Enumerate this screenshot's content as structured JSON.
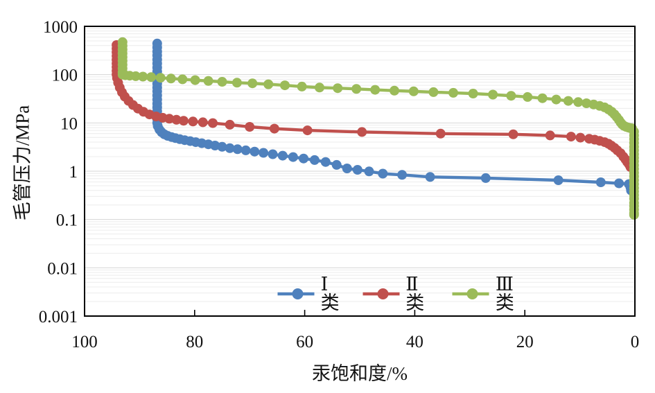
{
  "chart_data": {
    "type": "line",
    "title": "",
    "xlabel": "汞饱和度/%",
    "ylabel": "毛管压力/MPa",
    "x_axis": {
      "reversed": true,
      "min": 0,
      "max": 100,
      "ticks": [
        100,
        80,
        60,
        40,
        20,
        0
      ]
    },
    "y_axis": {
      "scale": "log",
      "min": 0.001,
      "max": 1000,
      "ticks": [
        {
          "label": "1000",
          "value": 1000
        },
        {
          "label": "100",
          "value": 100
        },
        {
          "label": "10",
          "value": 10
        },
        {
          "label": "1",
          "value": 1
        },
        {
          "label": "0.1",
          "value": 0.1
        },
        {
          "label": "0.01",
          "value": 0.01
        },
        {
          "label": "0.001",
          "value": 0.001
        }
      ]
    },
    "grid": {
      "horizontal_major": true,
      "horizontal_minor_log": true,
      "vertical": false,
      "major_color": "#d6d6d6",
      "minor_color": "#ececec",
      "border_color": "#000000"
    },
    "legend": {
      "position": "bottom-center-inside"
    },
    "series": [
      {
        "name": "Ⅰ类",
        "color": "#4F81BD",
        "points": [
          [
            86.8,
            440
          ],
          [
            86.8,
            365
          ],
          [
            86.8,
            300
          ],
          [
            86.8,
            250
          ],
          [
            86.8,
            205
          ],
          [
            86.8,
            170
          ],
          [
            86.8,
            140
          ],
          [
            86.8,
            116
          ],
          [
            86.8,
            96
          ],
          [
            86.8,
            79
          ],
          [
            86.8,
            65
          ],
          [
            86.8,
            54
          ],
          [
            86.8,
            45
          ],
          [
            86.8,
            37
          ],
          [
            86.8,
            30.5
          ],
          [
            86.8,
            25
          ],
          [
            86.8,
            21
          ],
          [
            86.8,
            17.5
          ],
          [
            86.8,
            14.5
          ],
          [
            86.8,
            12
          ],
          [
            86.8,
            10
          ],
          [
            86.7,
            8.6
          ],
          [
            86.4,
            7.3
          ],
          [
            86.0,
            6.4
          ],
          [
            85.5,
            5.8
          ],
          [
            84.9,
            5.4
          ],
          [
            84.2,
            5.1
          ],
          [
            83.5,
            4.85
          ],
          [
            82.7,
            4.6
          ],
          [
            81.8,
            4.4
          ],
          [
            80.8,
            4.2
          ],
          [
            79.8,
            4.0
          ],
          [
            78.7,
            3.8
          ],
          [
            77.5,
            3.6
          ],
          [
            76.3,
            3.4
          ],
          [
            75.0,
            3.2
          ],
          [
            73.6,
            3.0
          ],
          [
            72.2,
            2.85
          ],
          [
            70.7,
            2.7
          ],
          [
            69.1,
            2.55
          ],
          [
            67.5,
            2.4
          ],
          [
            65.8,
            2.25
          ],
          [
            64.0,
            2.1
          ],
          [
            62.1,
            1.96
          ],
          [
            60.2,
            1.83
          ],
          [
            58.2,
            1.7
          ],
          [
            56.2,
            1.55
          ],
          [
            54.2,
            1.35
          ],
          [
            52.3,
            1.14
          ],
          [
            50.4,
            1.07
          ],
          [
            48.3,
            0.99
          ],
          [
            45.8,
            0.89
          ],
          [
            42.3,
            0.84
          ],
          [
            37.2,
            0.76
          ],
          [
            27.1,
            0.72
          ],
          [
            13.9,
            0.65
          ],
          [
            6.2,
            0.59
          ],
          [
            2.9,
            0.56
          ],
          [
            1.1,
            0.54
          ],
          [
            0.8,
            0.46
          ],
          [
            0.7,
            0.4
          ]
        ]
      },
      {
        "name": "Ⅱ类",
        "color": "#C0504D",
        "points": [
          [
            94.2,
            410
          ],
          [
            94.2,
            345
          ],
          [
            94.2,
            290
          ],
          [
            94.2,
            243
          ],
          [
            94.2,
            203
          ],
          [
            94.2,
            170
          ],
          [
            94.2,
            143
          ],
          [
            94.2,
            120
          ],
          [
            94.2,
            101
          ],
          [
            94.1,
            85
          ],
          [
            93.9,
            68
          ],
          [
            93.6,
            54
          ],
          [
            93.2,
            43
          ],
          [
            92.7,
            35
          ],
          [
            92.0,
            28.5
          ],
          [
            91.2,
            23.5
          ],
          [
            90.3,
            19.8
          ],
          [
            89.3,
            17.0
          ],
          [
            88.2,
            15.0
          ],
          [
            87.0,
            13.6
          ],
          [
            85.8,
            12.8
          ],
          [
            84.6,
            12.2
          ],
          [
            83.3,
            11.6
          ],
          [
            82.0,
            11.1
          ],
          [
            80.3,
            10.7
          ],
          [
            78.5,
            10.3
          ],
          [
            76.7,
            9.9
          ],
          [
            73.6,
            9.2
          ],
          [
            70.0,
            8.3
          ],
          [
            65.5,
            7.6
          ],
          [
            59.5,
            7.0
          ],
          [
            49.6,
            6.5
          ],
          [
            35.3,
            6.0
          ],
          [
            22.1,
            5.8
          ],
          [
            15.4,
            5.5
          ],
          [
            11.6,
            5.2
          ],
          [
            9.9,
            4.95
          ],
          [
            8.3,
            4.7
          ],
          [
            7.3,
            4.5
          ],
          [
            6.4,
            4.25
          ],
          [
            5.5,
            4.0
          ],
          [
            4.8,
            3.7
          ],
          [
            4.3,
            3.4
          ],
          [
            3.7,
            3.05
          ],
          [
            3.2,
            2.7
          ],
          [
            2.6,
            2.35
          ],
          [
            2.1,
            2.0
          ],
          [
            1.7,
            1.75
          ],
          [
            1.4,
            1.55
          ],
          [
            1.1,
            1.4
          ],
          [
            0.9,
            1.3
          ],
          [
            0.8,
            1.22
          ]
        ]
      },
      {
        "name": "Ⅲ类",
        "color": "#9BBB59",
        "points": [
          [
            93.1,
            470
          ],
          [
            93.1,
            395
          ],
          [
            93.1,
            330
          ],
          [
            93.1,
            275
          ],
          [
            93.1,
            230
          ],
          [
            93.1,
            192
          ],
          [
            93.1,
            160
          ],
          [
            93.1,
            134
          ],
          [
            93.1,
            112
          ],
          [
            93.1,
            100
          ],
          [
            92.6,
            97
          ],
          [
            91.8,
            95
          ],
          [
            90.7,
            93
          ],
          [
            89.4,
            91
          ],
          [
            87.9,
            89
          ],
          [
            86.2,
            86
          ],
          [
            84.3,
            83
          ],
          [
            82.2,
            80
          ],
          [
            79.9,
            77
          ],
          [
            77.5,
            74
          ],
          [
            75.0,
            71
          ],
          [
            72.3,
            68
          ],
          [
            69.5,
            66
          ],
          [
            66.6,
            63
          ],
          [
            63.6,
            60
          ],
          [
            60.5,
            56.5
          ],
          [
            57.3,
            54
          ],
          [
            54.0,
            52.5
          ],
          [
            50.6,
            50.5
          ],
          [
            47.2,
            48.5
          ],
          [
            43.7,
            46.5
          ],
          [
            40.2,
            45
          ],
          [
            36.6,
            43.5
          ],
          [
            33.0,
            42
          ],
          [
            29.4,
            40.5
          ],
          [
            25.8,
            38.5
          ],
          [
            22.5,
            36.5
          ],
          [
            19.5,
            34.5
          ],
          [
            16.8,
            32.5
          ],
          [
            14.3,
            30.5
          ],
          [
            12.1,
            28.5
          ],
          [
            10.3,
            27
          ],
          [
            8.8,
            25.5
          ],
          [
            7.5,
            24
          ],
          [
            6.4,
            22.5
          ],
          [
            5.5,
            21
          ],
          [
            4.8,
            19
          ],
          [
            4.2,
            17
          ],
          [
            3.7,
            15
          ],
          [
            3.3,
            13.2
          ],
          [
            2.9,
            11.5
          ],
          [
            2.6,
            10.2
          ],
          [
            2.3,
            9.3
          ],
          [
            2.0,
            8.7
          ],
          [
            1.6,
            8.3
          ],
          [
            1.2,
            8.0
          ],
          [
            0.8,
            7.8
          ],
          [
            0.5,
            7.7
          ],
          [
            0.15,
            6.6
          ],
          [
            0.15,
            5.5
          ],
          [
            0.15,
            4.6
          ],
          [
            0.15,
            3.85
          ],
          [
            0.15,
            3.2
          ],
          [
            0.15,
            2.7
          ],
          [
            0.15,
            2.25
          ],
          [
            0.15,
            1.9
          ],
          [
            0.15,
            1.6
          ],
          [
            0.15,
            1.33
          ],
          [
            0.15,
            1.11
          ],
          [
            0.15,
            0.93
          ],
          [
            0.15,
            0.78
          ],
          [
            0.15,
            0.65
          ],
          [
            0.15,
            0.54
          ],
          [
            0.15,
            0.45
          ],
          [
            0.15,
            0.38
          ],
          [
            0.15,
            0.32
          ],
          [
            0.15,
            0.27
          ],
          [
            0.15,
            0.22
          ],
          [
            0.15,
            0.19
          ],
          [
            0.15,
            0.16
          ],
          [
            0.15,
            0.135
          ],
          [
            0.15,
            0.125
          ]
        ]
      }
    ],
    "style": {
      "line_width": 4.4,
      "marker_radius": 7,
      "marker_shape": "circle"
    }
  }
}
